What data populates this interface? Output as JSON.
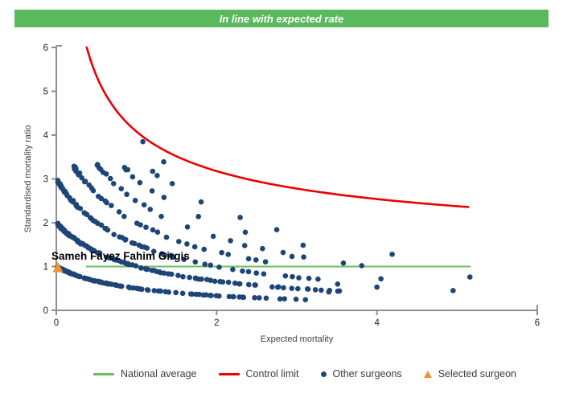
{
  "banner": {
    "title": "In line with expected rate",
    "bg_color": "#5cb85c",
    "text_color": "#ffffff"
  },
  "chart_data": {
    "type": "scatter",
    "title": "",
    "xlabel": "Expected mortality",
    "ylabel": "Standardised mortality ratio",
    "xlim": [
      0,
      6
    ],
    "ylim": [
      0,
      6
    ],
    "x_ticks": [
      0,
      2,
      4,
      6
    ],
    "y_ticks": [
      0,
      1,
      2,
      3,
      4,
      5,
      6
    ],
    "grid": false,
    "axis_color": "#8f8f8f",
    "tick_label_color": "#1f1f1f",
    "axis_title_color": "#404040",
    "national_average": {
      "y": 1.0,
      "x_start": 0.37,
      "x_end": 5.17,
      "color": "#6cbf60"
    },
    "control_limit": {
      "formula": "y = 1 + 3.08/sqrt(x)",
      "coef": 3.08,
      "baseline": 1.0,
      "x_start": 0.379,
      "x_end": 5.17,
      "y_at_end": 2.35,
      "color": "#ee0000"
    },
    "selected_surgeon": {
      "name": "Sameh Fayez Fahim Girgis",
      "x": 0.02,
      "y": 0.98,
      "color": "#ef9433"
    },
    "other_surgeons": {
      "color": "#1d4577",
      "marker": "dot",
      "band_formula": "y = k / (1 + x)  (k = observed-death curve index)",
      "seed": 42,
      "bands": [
        {
          "k": 1,
          "x_start": 0.02,
          "x_end": 3.3,
          "n": 135
        },
        {
          "k": 2,
          "x_start": 0.02,
          "x_end": 3.55,
          "n": 135
        },
        {
          "k": 3,
          "x_start": 0.03,
          "x_end": 3.25,
          "n": 85
        },
        {
          "k": 4,
          "x_start": 0.22,
          "x_end": 3.3,
          "n": 48
        },
        {
          "k": 5,
          "x_start": 0.52,
          "x_end": 3.9,
          "n": 26
        },
        {
          "k": 6,
          "x_start": 0.86,
          "x_end": 3.1,
          "n": 13
        },
        {
          "k": 7,
          "x_start": 1.2,
          "x_end": 3.0,
          "n": 6
        }
      ],
      "extra_points": [
        [
          1.08,
          3.85
        ],
        [
          1.34,
          3.39
        ],
        [
          2.75,
          1.84
        ],
        [
          2.94,
          1.23
        ],
        [
          3.4,
          0.42
        ],
        [
          3.51,
          0.6
        ],
        [
          3.81,
          1.02
        ],
        [
          4.0,
          0.53
        ],
        [
          4.05,
          0.72
        ],
        [
          4.19,
          1.28
        ],
        [
          4.95,
          0.45
        ],
        [
          5.16,
          0.76
        ]
      ]
    }
  },
  "legend": {
    "items": [
      {
        "label": "National average",
        "marker": "line",
        "color": "#6cbf60"
      },
      {
        "label": "Control limit",
        "marker": "line",
        "color": "#ee0000"
      },
      {
        "label": "Other surgeons",
        "marker": "dot",
        "color": "#1d4577"
      },
      {
        "label": "Selected surgeon",
        "marker": "triangle",
        "color": "#ef9433"
      }
    ]
  }
}
